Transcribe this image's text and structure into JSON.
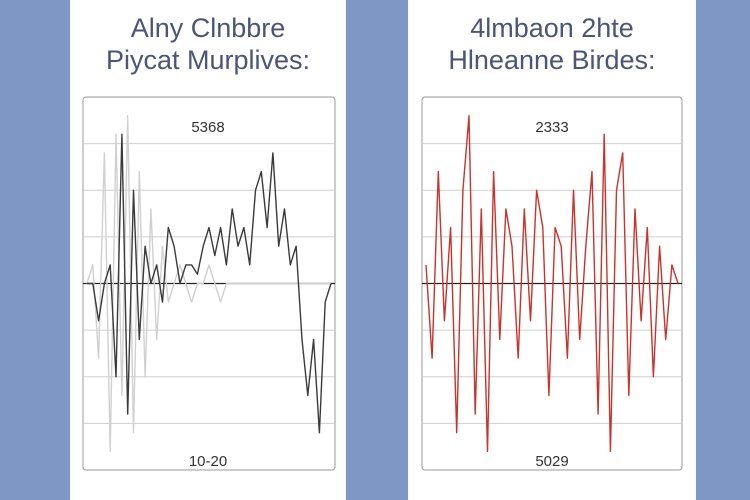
{
  "chart_data": [
    {
      "type": "line",
      "title": "Alny Clnbbre",
      "subtitle": "Piycat Murplives:",
      "annotation": "5368",
      "footer": "10-20",
      "ylim": [
        -1,
        1
      ],
      "series": [
        {
          "color": "#d0d0d0",
          "values": [
            0,
            0.1,
            -0.4,
            0.7,
            -0.9,
            0.8,
            -0.6,
            0.9,
            -0.8,
            0.6,
            -0.5,
            0.4,
            -0.3,
            0.2,
            -0.1,
            0,
            0.1,
            0,
            -0.1,
            0,
            0,
            0.1,
            0,
            -0.1,
            0,
            0,
            0,
            0,
            0,
            0,
            0,
            0,
            0,
            0,
            0,
            0,
            0,
            0,
            0,
            0,
            0,
            0,
            0
          ]
        },
        {
          "color": "#3a3a3a",
          "values": [
            0,
            0,
            -0.2,
            0,
            0.1,
            -0.5,
            0.8,
            -0.7,
            0.5,
            -0.3,
            0.2,
            0,
            0.1,
            -0.1,
            0.3,
            0.2,
            0,
            0.1,
            0.1,
            0.05,
            0.2,
            0.3,
            0.15,
            0.3,
            0.1,
            0.4,
            0.2,
            0.3,
            0.1,
            0.5,
            0.6,
            0.3,
            0.7,
            0.2,
            0.4,
            0.1,
            0.2,
            -0.3,
            -0.6,
            -0.3,
            -0.8,
            -0.1,
            0
          ]
        }
      ]
    },
    {
      "type": "line",
      "title": "4lmbaon 2hte",
      "subtitle": "Hlneanne Birdes:",
      "annotation": "2333",
      "footer": "5029",
      "ylim": [
        -1,
        1
      ],
      "series": [
        {
          "color": "#c8332d",
          "values": [
            0.1,
            -0.4,
            0.6,
            -0.2,
            0.3,
            -0.8,
            0.5,
            0.9,
            -0.7,
            0.4,
            -0.9,
            0.6,
            -0.3,
            0.4,
            0.2,
            -0.4,
            0.4,
            -0.2,
            0.5,
            0.3,
            -0.6,
            0.3,
            0.2,
            -0.4,
            0.5,
            -0.3,
            0.2,
            0.6,
            -0.7,
            0.8,
            -0.9,
            0.5,
            0.7,
            -0.6,
            0.4,
            -0.2,
            0.3,
            -0.5,
            0.2,
            -0.3,
            0.1,
            0
          ]
        }
      ]
    }
  ]
}
